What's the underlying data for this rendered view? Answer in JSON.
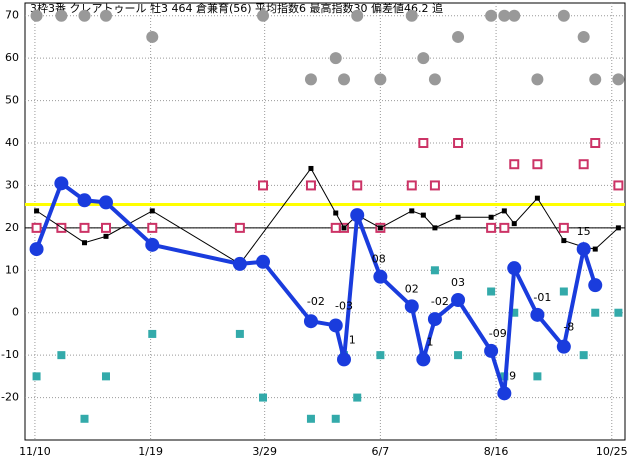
{
  "chart_data": {
    "type": "line",
    "title": "3枠3番 クレアトゥール 牡3 464 倉兼育(56) 平均指数6 最高指数30 偏差値46.2 追",
    "xlim": [
      -6,
      357
    ],
    "ylim": [
      -30,
      73
    ],
    "xticks": [
      {
        "value": 0,
        "label": "11/10"
      },
      {
        "value": 70,
        "label": "1/19"
      },
      {
        "value": 139,
        "label": "3/29"
      },
      {
        "value": 209,
        "label": "6/7"
      },
      {
        "value": 279,
        "label": "8/16"
      },
      {
        "value": 349,
        "label": "10/25"
      }
    ],
    "yticks": [
      -20,
      -10,
      0,
      10,
      20,
      30,
      40,
      50,
      60,
      70
    ],
    "grid": true,
    "reference_lines": [
      {
        "value": 25.5,
        "color": "#ffff00"
      },
      {
        "value": 20,
        "color": "#000000"
      }
    ],
    "series": [
      {
        "name": "gray",
        "style": "circle",
        "color": "#999999",
        "x": [
          1,
          16,
          30,
          43,
          71,
          138,
          167,
          182,
          187,
          195,
          209,
          228,
          235,
          242,
          256,
          276,
          284,
          290,
          304,
          320,
          332,
          339,
          353
        ],
        "values": [
          70,
          70,
          70,
          70,
          65,
          70,
          55,
          60,
          55,
          70,
          55,
          70,
          60,
          55,
          65,
          70,
          70,
          70,
          55,
          70,
          65,
          55,
          55
        ]
      },
      {
        "name": "teal",
        "style": "square",
        "color": "#33aaaa",
        "x": [
          1,
          16,
          30,
          43,
          71,
          124,
          138,
          167,
          182,
          187,
          195,
          209,
          235,
          242,
          256,
          276,
          284,
          290,
          304,
          320,
          332,
          339,
          353
        ],
        "values": [
          -15,
          -10,
          -25,
          -15,
          -5,
          -5,
          -20,
          -25,
          -25,
          -10,
          -20,
          -10,
          -10,
          10,
          -10,
          5,
          -15,
          0,
          -15,
          5,
          -10,
          0,
          0
        ]
      },
      {
        "name": "red",
        "style": "hollow-square",
        "color": "#cc3366",
        "x": [
          1,
          16,
          30,
          43,
          71,
          124,
          138,
          167,
          182,
          187,
          195,
          209,
          228,
          235,
          242,
          256,
          276,
          284,
          290,
          304,
          320,
          332,
          339,
          353
        ],
        "values": [
          20,
          20,
          20,
          20,
          20,
          20,
          30,
          30,
          20,
          20,
          30,
          20,
          30,
          40,
          30,
          40,
          20,
          20,
          35,
          35,
          20,
          35,
          40,
          30
        ]
      },
      {
        "name": "black",
        "style": "thin-line",
        "color": "#000000",
        "x": [
          1,
          30,
          43,
          71,
          124,
          167,
          182,
          187,
          195,
          209,
          228,
          235,
          242,
          256,
          276,
          284,
          290,
          304,
          320,
          332,
          339,
          353
        ],
        "values": [
          24,
          16.5,
          18,
          24,
          11.5,
          34,
          23.5,
          20,
          23,
          20,
          24,
          23,
          20,
          22.5,
          22.5,
          24,
          21,
          27,
          17,
          15.5,
          15,
          20
        ]
      },
      {
        "name": "blue",
        "style": "thick-line",
        "color": "#1a3cdd",
        "x": [
          1,
          16,
          30,
          43,
          71,
          124,
          138,
          167,
          182,
          187,
          195,
          209,
          228,
          235,
          242,
          256,
          276,
          284,
          290,
          304,
          320,
          332,
          339
        ],
        "values": [
          15,
          30.5,
          26.5,
          26,
          16,
          11.5,
          12,
          -2,
          -3,
          -11,
          23,
          8.5,
          1.5,
          -11,
          -1.5,
          3,
          -9,
          -19,
          10.5,
          -0.5,
          -8,
          15,
          6.5
        ]
      }
    ],
    "annotations": [
      {
        "x": 170,
        "y": 2.5,
        "text": "-02"
      },
      {
        "x": 187,
        "y": 1.5,
        "text": "-03"
      },
      {
        "x": 192,
        "y": -6.5,
        "text": "1"
      },
      {
        "x": 208,
        "y": 12.5,
        "text": "08"
      },
      {
        "x": 228,
        "y": 5.5,
        "text": "02"
      },
      {
        "x": 239,
        "y": -7,
        "text": "1"
      },
      {
        "x": 245,
        "y": 2.5,
        "text": "-02"
      },
      {
        "x": 256,
        "y": 7,
        "text": "03"
      },
      {
        "x": 280,
        "y": -5,
        "text": "-09"
      },
      {
        "x": 289,
        "y": -15,
        "text": "9"
      },
      {
        "x": 307,
        "y": 3.5,
        "text": "-01"
      },
      {
        "x": 323,
        "y": -3.5,
        "text": "-8"
      },
      {
        "x": 332,
        "y": 19,
        "text": "15"
      }
    ]
  }
}
